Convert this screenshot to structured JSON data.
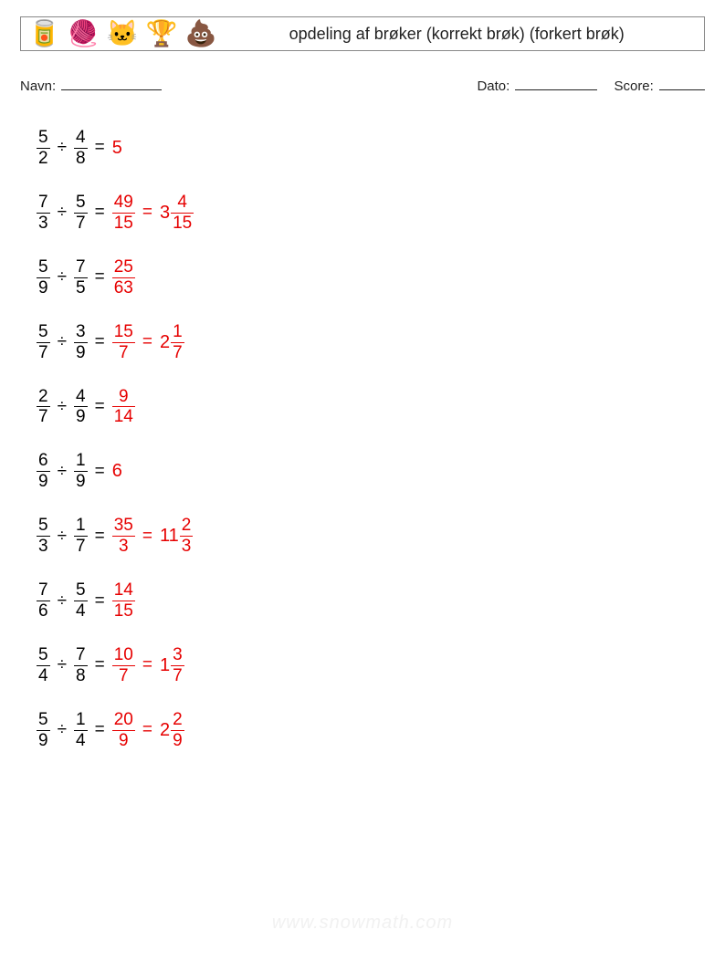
{
  "header": {
    "title": "opdeling af brøker (korrekt brøk) (forkert brøk)",
    "icons": [
      "🥫",
      "🧶",
      "🐱",
      "🏆",
      "💩"
    ]
  },
  "meta": {
    "name_label": "Navn:",
    "date_label": "Dato:",
    "score_label": "Score:"
  },
  "colors": {
    "answer": "#e60000",
    "text": "#000000",
    "border": "#888888",
    "background": "#ffffff",
    "watermark": "#f1f1f1"
  },
  "font_sizes": {
    "title": 18,
    "meta": 15,
    "problem": 19
  },
  "operator": "÷",
  "equals": "=",
  "problems": [
    {
      "a": {
        "n": "5",
        "d": "2"
      },
      "b": {
        "n": "4",
        "d": "8"
      },
      "answers": [
        {
          "type": "int",
          "v": "5"
        }
      ]
    },
    {
      "a": {
        "n": "7",
        "d": "3"
      },
      "b": {
        "n": "5",
        "d": "7"
      },
      "answers": [
        {
          "type": "frac",
          "n": "49",
          "d": "15"
        },
        {
          "type": "mixed",
          "w": "3",
          "n": "4",
          "d": "15"
        }
      ]
    },
    {
      "a": {
        "n": "5",
        "d": "9"
      },
      "b": {
        "n": "7",
        "d": "5"
      },
      "answers": [
        {
          "type": "frac",
          "n": "25",
          "d": "63"
        }
      ]
    },
    {
      "a": {
        "n": "5",
        "d": "7"
      },
      "b": {
        "n": "3",
        "d": "9"
      },
      "answers": [
        {
          "type": "frac",
          "n": "15",
          "d": "7"
        },
        {
          "type": "mixed",
          "w": "2",
          "n": "1",
          "d": "7"
        }
      ]
    },
    {
      "a": {
        "n": "2",
        "d": "7"
      },
      "b": {
        "n": "4",
        "d": "9"
      },
      "answers": [
        {
          "type": "frac",
          "n": "9",
          "d": "14"
        }
      ]
    },
    {
      "a": {
        "n": "6",
        "d": "9"
      },
      "b": {
        "n": "1",
        "d": "9"
      },
      "answers": [
        {
          "type": "int",
          "v": "6"
        }
      ]
    },
    {
      "a": {
        "n": "5",
        "d": "3"
      },
      "b": {
        "n": "1",
        "d": "7"
      },
      "answers": [
        {
          "type": "frac",
          "n": "35",
          "d": "3"
        },
        {
          "type": "mixed",
          "w": "11",
          "n": "2",
          "d": "3"
        }
      ]
    },
    {
      "a": {
        "n": "7",
        "d": "6"
      },
      "b": {
        "n": "5",
        "d": "4"
      },
      "answers": [
        {
          "type": "frac",
          "n": "14",
          "d": "15"
        }
      ]
    },
    {
      "a": {
        "n": "5",
        "d": "4"
      },
      "b": {
        "n": "7",
        "d": "8"
      },
      "answers": [
        {
          "type": "frac",
          "n": "10",
          "d": "7"
        },
        {
          "type": "mixed",
          "w": "1",
          "n": "3",
          "d": "7"
        }
      ]
    },
    {
      "a": {
        "n": "5",
        "d": "9"
      },
      "b": {
        "n": "1",
        "d": "4"
      },
      "answers": [
        {
          "type": "frac",
          "n": "20",
          "d": "9"
        },
        {
          "type": "mixed",
          "w": "2",
          "n": "2",
          "d": "9"
        }
      ]
    }
  ],
  "watermark": "www.snowmath.com"
}
